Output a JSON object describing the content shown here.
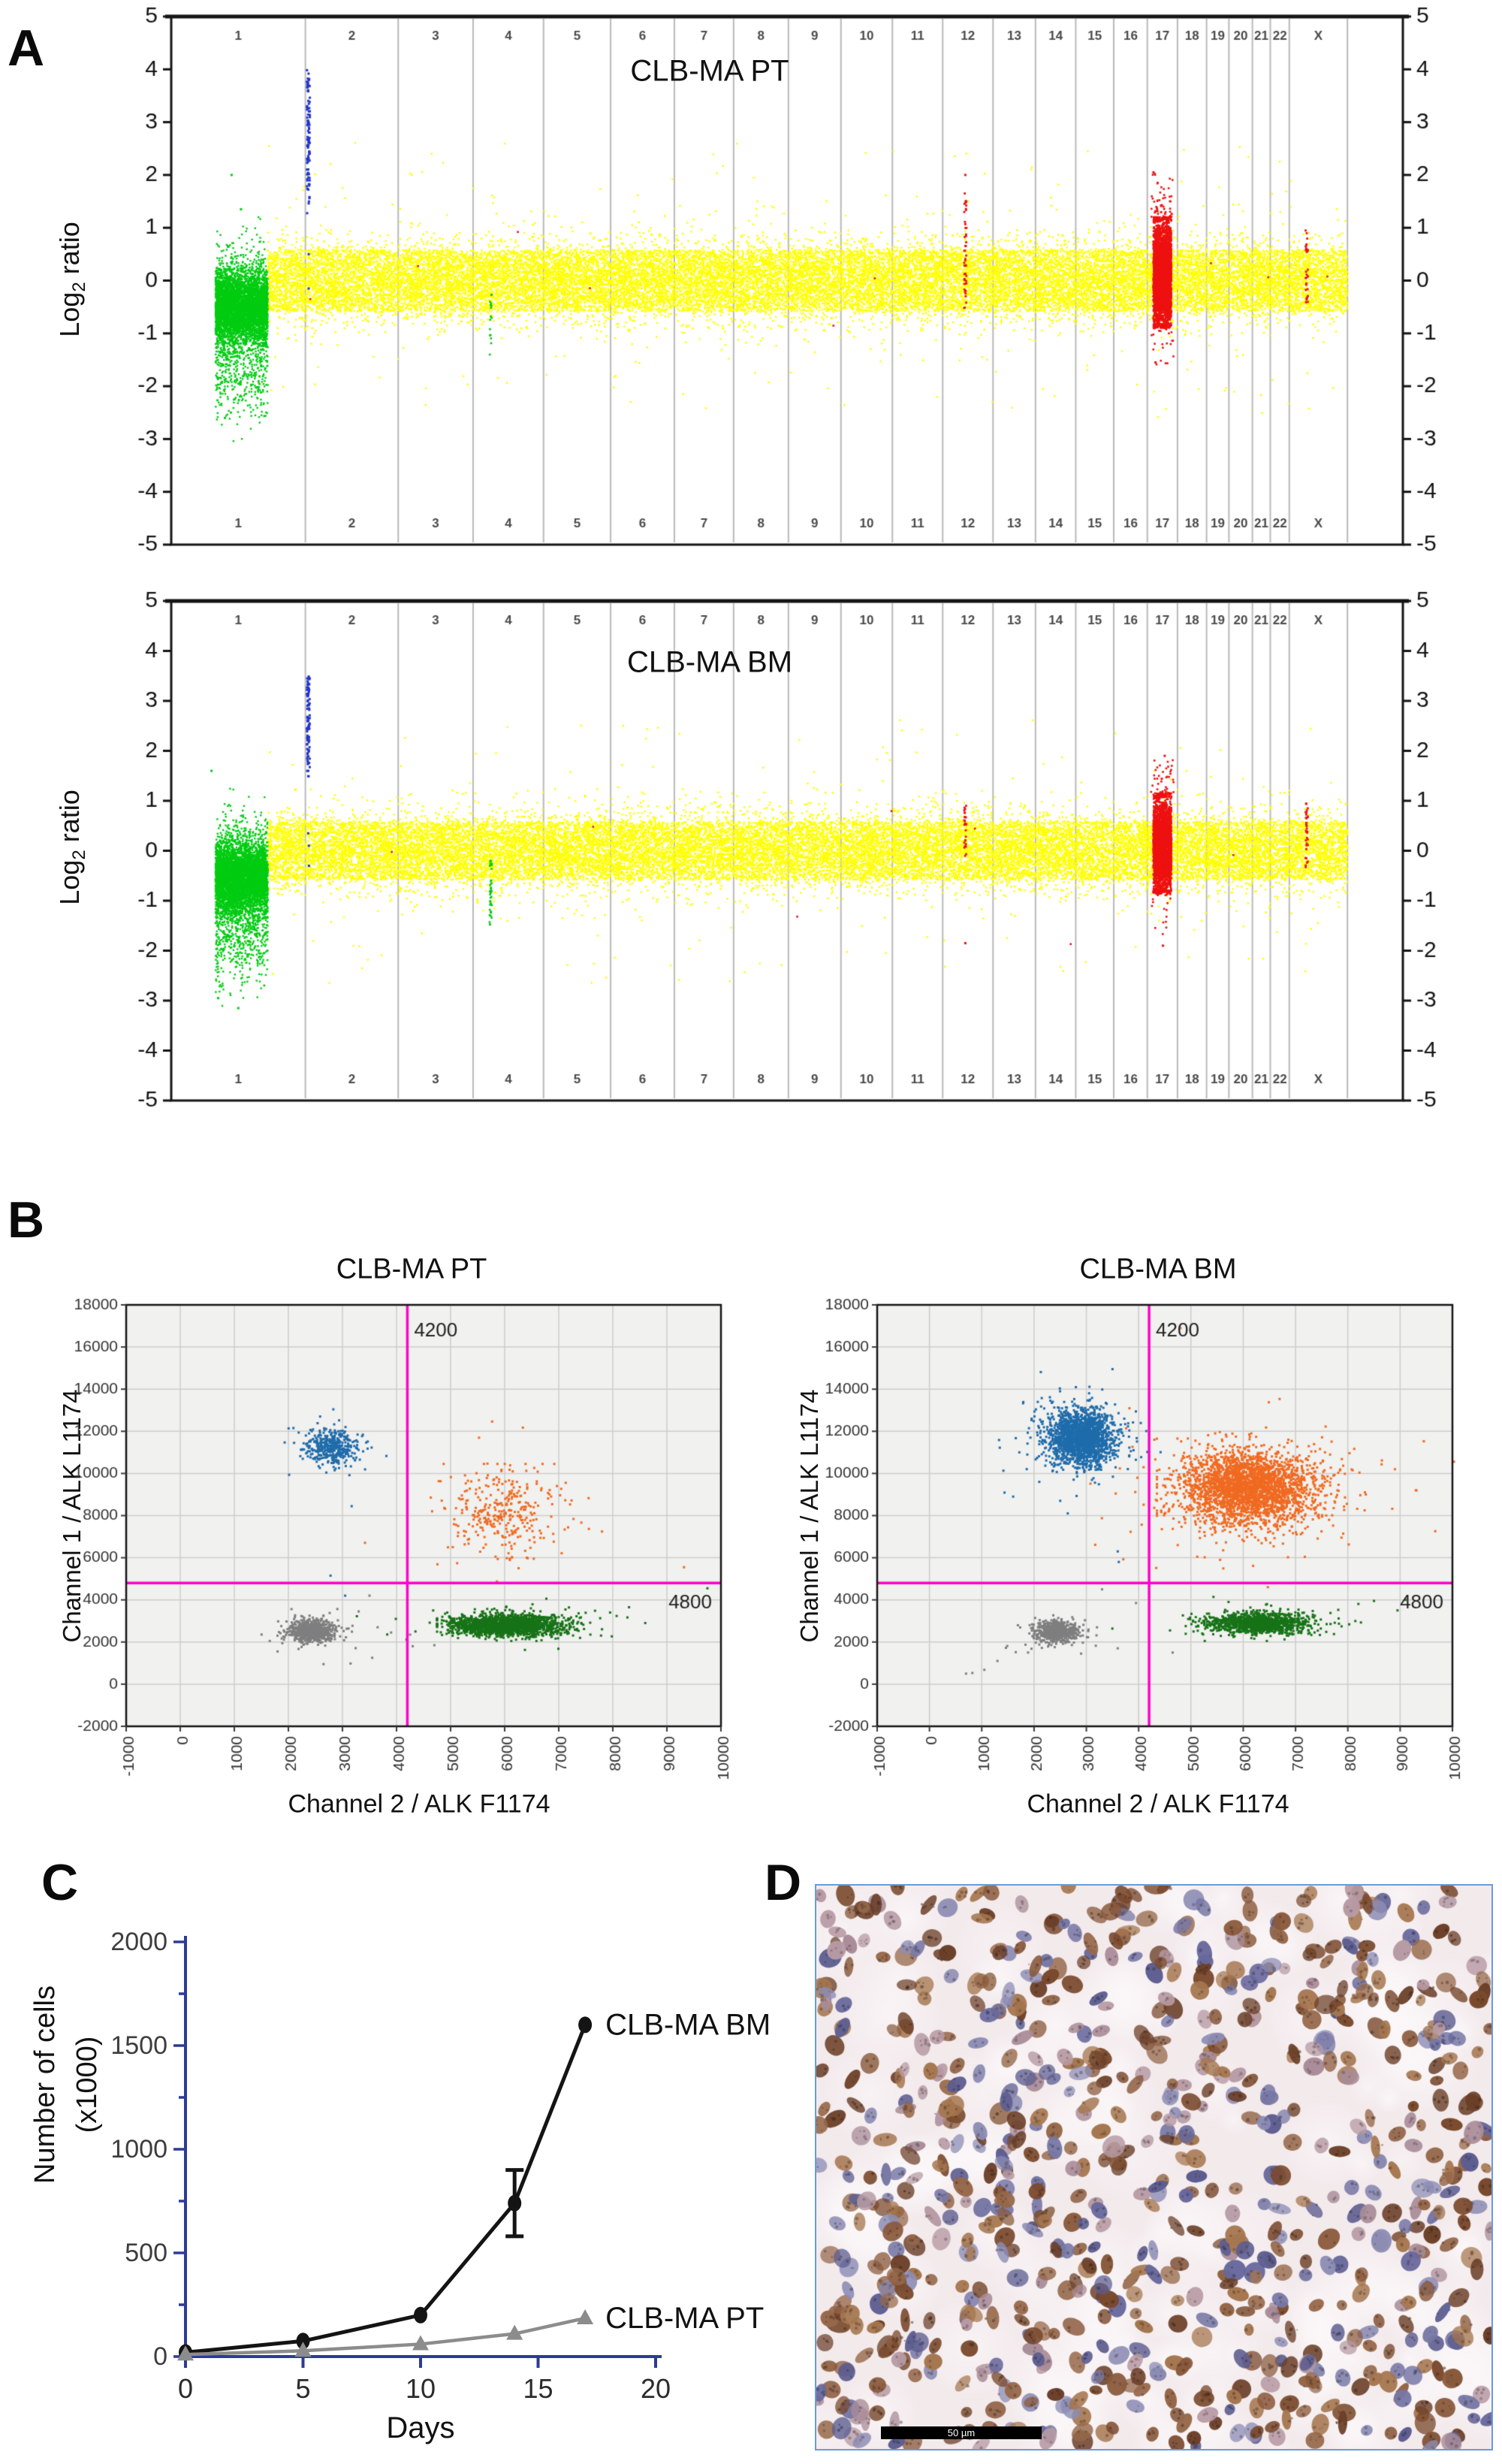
{
  "figure": {
    "panels": {
      "a": {
        "label": "A",
        "ylabel": {
          "pre": "Log",
          "sub": "2",
          "post": " ratio"
        }
      },
      "b": {
        "label": "B",
        "ylabel": "Channel 1 / ALK L1174",
        "xlabel": "Channel 2 / ALK F1174"
      },
      "c": {
        "label": "C"
      },
      "d": {
        "label": "D",
        "scalebar_text": "50 µm"
      }
    }
  },
  "chart_data": [
    {
      "id": "cgh_pt",
      "type": "scatter",
      "title": "CLB-MA PT",
      "seed": 11,
      "ylabel": "Log2 ratio",
      "ylim": [
        -5,
        5
      ],
      "yticks": [
        5,
        4,
        3,
        2,
        1,
        0,
        -1,
        -2,
        -3,
        -4,
        -5
      ],
      "x_categories": [
        "1",
        "2",
        "3",
        "4",
        "5",
        "6",
        "7",
        "8",
        "9",
        "10",
        "11",
        "12",
        "13",
        "14",
        "15",
        "16",
        "17",
        "18",
        "19",
        "20",
        "21",
        "22",
        "X"
      ],
      "chrom_fracs": [
        0.12,
        0.083,
        0.067,
        0.063,
        0.06,
        0.057,
        0.053,
        0.049,
        0.047,
        0.046,
        0.045,
        0.045,
        0.038,
        0.036,
        0.034,
        0.03,
        0.027,
        0.026,
        0.02,
        0.021,
        0.016,
        0.017,
        0.052
      ],
      "right_gap_frac": 0.045,
      "colors": {
        "normal": "#ffff00",
        "loss": "#00cc11",
        "gain": "#2233cc",
        "amp": "#ee1111",
        "boundary": "#b9b9b9"
      },
      "baseline": {
        "n": 24000,
        "core_half": 0.58,
        "core_frac": 0.55,
        "sigma": 0.4,
        "outlier_frac": 0.012
      },
      "features": {
        "green1": {
          "x_from": 0.33,
          "x_to": 0.72,
          "n": 5200,
          "cy": -0.5,
          "sy": 0.33,
          "halo_sy": 0.58,
          "tail_frac": 0.07,
          "tail_cy": -1.7,
          "tail_sy": 0.5,
          "outliers": [
            [
              0.45,
              2.0
            ],
            [
              0.52,
              1.35
            ],
            [
              0.4,
              -2.6
            ]
          ]
        },
        "blue2": {
          "n": 95,
          "y_min": 1.25,
          "y_max": 4.0,
          "y_dense_min": 2.2,
          "y_dense_max": 3.35,
          "extra": [
            0.5,
            -0.15
          ]
        },
        "green4": {
          "n": 16,
          "y_min": -1.45,
          "y_max": -0.2
        },
        "red12": {
          "n": 48,
          "y_min": -0.55,
          "y_max": 1.65,
          "extra": [
            2.0
          ]
        },
        "red17": {
          "n": 3100,
          "cy": 0.14,
          "sy": 0.5,
          "y_min": -0.9,
          "y_max": 1.2,
          "above_n": 60,
          "above_span": 0.85,
          "below_n": 22,
          "below_span": 0.75,
          "extra": [
            2.05,
            -1.55
          ]
        },
        "redX": {
          "n": 30,
          "y_min": -0.42,
          "y_max": 0.95
        },
        "red_sprinkle_n": 9
      }
    },
    {
      "id": "cgh_bm",
      "type": "scatter",
      "title": "CLB-MA BM",
      "seed": 12,
      "ylabel": "Log2 ratio",
      "ylim": [
        -5,
        5
      ],
      "yticks": [
        5,
        4,
        3,
        2,
        1,
        0,
        -1,
        -2,
        -3,
        -4,
        -5
      ],
      "x_categories": [
        "1",
        "2",
        "3",
        "4",
        "5",
        "6",
        "7",
        "8",
        "9",
        "10",
        "11",
        "12",
        "13",
        "14",
        "15",
        "16",
        "17",
        "18",
        "19",
        "20",
        "21",
        "22",
        "X"
      ],
      "chrom_fracs": [
        0.12,
        0.083,
        0.067,
        0.063,
        0.06,
        0.057,
        0.053,
        0.049,
        0.047,
        0.046,
        0.045,
        0.045,
        0.038,
        0.036,
        0.034,
        0.03,
        0.027,
        0.026,
        0.02,
        0.021,
        0.016,
        0.017,
        0.052
      ],
      "right_gap_frac": 0.045,
      "colors": {
        "normal": "#ffff00",
        "loss": "#00cc11",
        "gain": "#2233cc",
        "amp": "#ee1111",
        "boundary": "#b9b9b9"
      },
      "baseline": {
        "n": 23000,
        "core_half": 0.58,
        "core_frac": 0.55,
        "sigma": 0.4,
        "outlier_frac": 0.01
      },
      "features": {
        "green1": {
          "x_from": 0.33,
          "x_to": 0.72,
          "n": 5200,
          "cy": -0.55,
          "sy": 0.36,
          "halo_sy": 0.6,
          "tail_frac": 0.08,
          "tail_cy": -1.8,
          "tail_sy": 0.5,
          "outliers": [
            [
              0.3,
              1.6
            ],
            [
              0.35,
              -2.95
            ],
            [
              0.5,
              -3.15
            ]
          ]
        },
        "blue2": {
          "n": 90,
          "y_min": 1.45,
          "y_max": 3.5,
          "y_dense_min": 2.2,
          "y_dense_max": 3.3,
          "extra": [
            0.35,
            0.1,
            -0.3
          ]
        },
        "green4": {
          "n": 42,
          "y_min": -1.5,
          "y_max": -0.2
        },
        "red12": {
          "n": 26,
          "y_min": -0.2,
          "y_max": 0.9,
          "extra": [
            -1.85
          ]
        },
        "red17": {
          "n": 2800,
          "cy": 0.1,
          "sy": 0.48,
          "y_min": -0.85,
          "y_max": 1.15,
          "above_n": 45,
          "above_span": 0.7,
          "below_n": 26,
          "below_span": 0.9,
          "extra": [
            1.9,
            -1.9
          ]
        },
        "redX": {
          "n": 34,
          "y_min": -0.5,
          "y_max": 0.95
        },
        "red_sprinkle_n": 7
      }
    },
    {
      "id": "ddpcr_pt",
      "type": "scatter",
      "title": "CLB-MA PT",
      "seed": 21,
      "xlabel": "Channel 2 / ALK F1174",
      "ylabel": "Channel 1 / ALK L1174",
      "xlim": [
        -1000,
        10000
      ],
      "ylim": [
        -2000,
        18000
      ],
      "xticks": [
        -1000,
        0,
        1000,
        2000,
        3000,
        4000,
        5000,
        6000,
        7000,
        8000,
        9000,
        10000
      ],
      "yticks": [
        18000,
        16000,
        14000,
        12000,
        10000,
        8000,
        6000,
        4000,
        2000,
        0,
        -2000
      ],
      "thresholds": {
        "color": "#ff00cc",
        "x_value": 4200,
        "x_label": "4200",
        "y_value": 4800,
        "y_label": "4800"
      },
      "plot_bg": "#f1f1ef",
      "grid_color": "#cdcdcd",
      "clusters": [
        {
          "name": "L1174-single-positive",
          "color": "#1f6cab",
          "cx": 2800,
          "cy": 11250,
          "sx": 250,
          "sy": 430,
          "n": 400,
          "halo": 30
        },
        {
          "name": "double-positive",
          "color": "#f06a21",
          "cx": 5950,
          "cy": 8200,
          "sx": 520,
          "sy": 1080,
          "n": 320,
          "halo": 20,
          "clip": [
            4600,
            7800,
            5200,
            10450
          ]
        },
        {
          "name": "negative",
          "color": "#7f7f7f",
          "cx": 2430,
          "cy": 2530,
          "sx": 210,
          "sy": 260,
          "n": 750,
          "halo": 25
        },
        {
          "name": "F1174-single-positive",
          "color": "#177317",
          "cx": 6050,
          "cy": 2800,
          "sx": 540,
          "sy": 260,
          "n": 1700,
          "halo": 60,
          "clip": [
            4750,
            7800,
            2050,
            3750
          ]
        }
      ],
      "strays": [
        {
          "color": "#1f6cab",
          "points": [
            [
              2780,
              5150
            ],
            [
              3050,
              4200
            ]
          ]
        },
        {
          "color": "#7f7f7f",
          "points": [
            [
              3300,
              3450
            ],
            [
              3650,
              2700
            ],
            [
              3900,
              2450
            ],
            [
              4250,
              2350
            ],
            [
              4300,
              1800
            ],
            [
              3550,
              1250
            ],
            [
              3150,
              980
            ],
            [
              2650,
              950
            ],
            [
              1800,
              1550
            ],
            [
              4700,
              1850
            ],
            [
              3500,
              4200
            ]
          ]
        },
        {
          "color": "#177317",
          "points": [
            [
              4350,
              2500
            ],
            [
              8300,
              3650
            ],
            [
              9750,
              4550
            ],
            [
              7950,
              3400
            ],
            [
              8600,
              2900
            ]
          ]
        }
      ]
    },
    {
      "id": "ddpcr_bm",
      "type": "scatter",
      "title": "CLB-MA BM",
      "seed": 22,
      "xlabel": "Channel 2 / ALK F1174",
      "ylabel": "Channel 1 / ALK L1174",
      "xlim": [
        -1000,
        10000
      ],
      "ylim": [
        -2000,
        18000
      ],
      "xticks": [
        -1000,
        0,
        1000,
        2000,
        3000,
        4000,
        5000,
        6000,
        7000,
        8000,
        9000,
        10000
      ],
      "yticks": [
        18000,
        16000,
        14000,
        12000,
        10000,
        8000,
        6000,
        4000,
        2000,
        0,
        -2000
      ],
      "thresholds": {
        "color": "#ff00cc",
        "x_value": 4200,
        "x_label": "4200",
        "y_value": 4800,
        "y_label": "4800"
      },
      "plot_bg": "#f1f1ef",
      "grid_color": "#cdcdcd",
      "clusters": [
        {
          "name": "L1174-single-positive",
          "color": "#1f6cab",
          "cx": 2900,
          "cy": 11700,
          "sx": 320,
          "sy": 640,
          "n": 1800,
          "halo": 120,
          "clip": [
            1400,
            4150,
            8800,
            14300
          ]
        },
        {
          "name": "double-positive",
          "color": "#f06a21",
          "cx": 6100,
          "cy": 9300,
          "sx": 640,
          "sy": 880,
          "n": 2800,
          "halo": 160,
          "clip": [
            4350,
            8700,
            5100,
            11900
          ]
        },
        {
          "name": "negative",
          "color": "#7f7f7f",
          "cx": 2430,
          "cy": 2480,
          "sx": 210,
          "sy": 250,
          "n": 650,
          "halo": 25
        },
        {
          "name": "F1174-single-positive",
          "color": "#177317",
          "cx": 6300,
          "cy": 2900,
          "sx": 480,
          "sy": 255,
          "n": 1200,
          "halo": 50,
          "clip": [
            4900,
            8300,
            2050,
            3800
          ]
        }
      ],
      "strays": [
        {
          "color": "#1f6cab",
          "points": [
            [
              1600,
              8900
            ],
            [
              2100,
              9600
            ],
            [
              3600,
              6300
            ],
            [
              3620,
              5800
            ],
            [
              3500,
              14950
            ],
            [
              2500,
              8700
            ]
          ]
        },
        {
          "color": "#f06a21",
          "points": [
            [
              4800,
              16900
            ],
            [
              8900,
              10200
            ],
            [
              9300,
              9200
            ],
            [
              4300,
              11600
            ]
          ]
        },
        {
          "color": "#7f7f7f",
          "points": [
            [
              700,
              500
            ],
            [
              820,
              530
            ],
            [
              1050,
              680
            ],
            [
              1300,
              1100
            ],
            [
              1650,
              1520
            ],
            [
              1950,
              1680
            ],
            [
              2150,
              1720
            ],
            [
              3300,
              4500
            ],
            [
              3950,
              3850
            ],
            [
              4650,
              1500
            ],
            [
              3600,
              1700
            ],
            [
              2900,
              1450
            ]
          ]
        },
        {
          "color": "#177317",
          "points": [
            [
              5050,
              2500
            ],
            [
              8500,
              3950
            ],
            [
              8950,
              3500
            ],
            [
              4600,
              2550
            ],
            [
              9100,
              4000
            ]
          ]
        }
      ]
    },
    {
      "id": "growth",
      "type": "line",
      "xlabel": "Days",
      "ylabel_line1": "Number of cells",
      "ylabel_line2": "(x1000)",
      "xlim": [
        0,
        20
      ],
      "ylim": [
        0,
        2000
      ],
      "xticks": [
        0,
        5,
        10,
        15,
        20
      ],
      "yticks": [
        0,
        500,
        1000,
        1500,
        2000
      ],
      "ytick_minor_step": 250,
      "axis_color": "#2e3a97",
      "series": [
        {
          "name": "CLB-MA BM",
          "color": "#141414",
          "marker": "circle",
          "x": [
            0,
            5,
            10,
            14,
            17
          ],
          "y": [
            20,
            75,
            200,
            740,
            1600
          ],
          "yerr": [
            0,
            0,
            0,
            160,
            0
          ]
        },
        {
          "name": "CLB-MA PT",
          "color": "#8c8c8c",
          "marker": "triangle",
          "x": [
            0,
            5,
            10,
            14,
            17
          ],
          "y": [
            10,
            28,
            60,
            110,
            185
          ],
          "yerr": [
            0,
            0,
            0,
            0,
            0
          ]
        }
      ]
    }
  ],
  "histology": {
    "bg": "#f3eaec",
    "brown": [
      "#8a5a3c",
      "#7a4a2e",
      "#96684a",
      "#a5764f",
      "#6b3f28"
    ],
    "blue": [
      "#7878a6",
      "#68689c",
      "#8d8db5",
      "#5d5d90"
    ],
    "mauve": [
      "#b79aa4",
      "#a98c98"
    ],
    "seed": 33
  }
}
